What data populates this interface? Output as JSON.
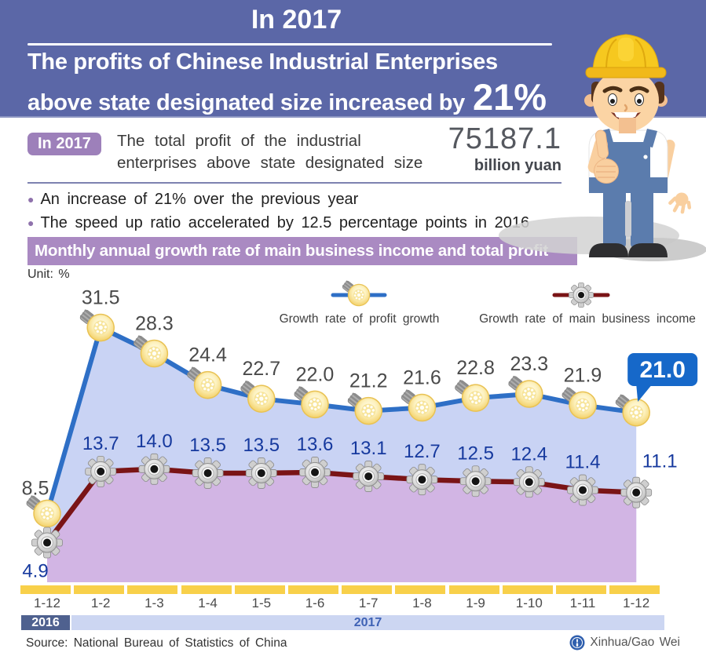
{
  "header": {
    "title": "In 2017",
    "heading_line1": "The profits of Chinese Industrial Enterprises",
    "heading_line2": "above state designated size increased by",
    "heading_highlight": "21%"
  },
  "summary": {
    "badge": "In 2017",
    "desc_line1": "The total profit of the industrial",
    "desc_line2": "enterprises above state designated size",
    "total_profit_value": "75187.1",
    "total_profit_unit": "billion yuan",
    "bullets": [
      "An increase of 21% over the previous year",
      "The speed up ratio accelerated by 12.5 percentage points in 2016"
    ]
  },
  "section_banner": "Monthly annual growth rate of main business income and total profit",
  "chart_data": {
    "type": "line",
    "title": "Monthly annual growth rate of main business income and total profit",
    "unit_label": "Unit: %",
    "categories": [
      "1-12",
      "1-2",
      "1-3",
      "1-4",
      "1-5",
      "1-6",
      "1-7",
      "1-8",
      "1-9",
      "1-10",
      "1-11",
      "1-12"
    ],
    "series": [
      {
        "name": "Growth rate of profit growth",
        "marker": "bulb-icon",
        "color": "#2e6fc6",
        "area_color": "#c9d3f4",
        "label_color": "#4a4a4a",
        "values": [
          8.5,
          31.5,
          28.3,
          24.4,
          22.7,
          22.0,
          21.2,
          21.6,
          22.8,
          23.3,
          21.9,
          21.0
        ]
      },
      {
        "name": "Growth rate of main business income",
        "marker": "gear-icon",
        "color": "#7a1416",
        "area_color": "#d2b5e4",
        "label_color": "#16399e",
        "values": [
          4.9,
          13.7,
          14.0,
          13.5,
          13.5,
          13.6,
          13.1,
          12.7,
          12.5,
          12.4,
          11.4,
          11.1
        ]
      }
    ],
    "callout_value": "21.0",
    "callout_color": "#1668c9",
    "ylim": [
      0,
      40
    ],
    "grid": false,
    "legend_position": "top",
    "year_bands": [
      {
        "label": "2016",
        "span": 1
      },
      {
        "label": "2017",
        "span": 11
      }
    ]
  },
  "axis_strip_color": "#f8d04a",
  "footer": {
    "source": "Source: National Bureau of Statistics of China",
    "credit": "Xinhua/Gao Wei"
  },
  "colors": {
    "header_bg": "#5b67a7",
    "badge_bg": "#9d80ba",
    "banner_bg": "#aa8ac2",
    "band_2016_bg": "#4f618f",
    "band_2017_bg": "#ccd6f2"
  }
}
